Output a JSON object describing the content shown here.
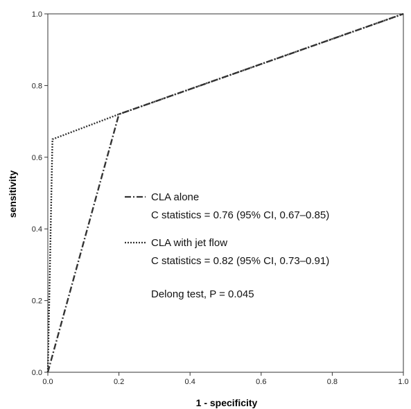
{
  "chart_data": {
    "type": "line",
    "xlabel": "1 - specificity",
    "ylabel": "sensitivity",
    "xlim": [
      0,
      1
    ],
    "ylim": [
      0,
      1
    ],
    "xticks": [
      "0.0",
      "0.2",
      "0.4",
      "0.6",
      "0.8",
      "1.0"
    ],
    "yticks": [
      "0.0",
      "0.2",
      "0.4",
      "0.6",
      "0.8",
      "1.0"
    ],
    "grid": false,
    "series": [
      {
        "name": "CLA alone",
        "stat": "C statistics = 0.76 (95% CI, 0.67–0.85)",
        "color": "#333333",
        "style": "dash-dot",
        "x": [
          0.0,
          0.2,
          1.0
        ],
        "y": [
          0.0,
          0.72,
          1.0
        ]
      },
      {
        "name": "CLA with jet flow",
        "stat": "C statistics = 0.82 (95% CI, 0.73–0.91)",
        "color": "#333333",
        "style": "dotted",
        "x": [
          0.0,
          0.013,
          0.2,
          1.0
        ],
        "y": [
          0.0,
          0.65,
          0.72,
          1.0
        ]
      }
    ],
    "annotation": "Delong test, P = 0.045"
  }
}
